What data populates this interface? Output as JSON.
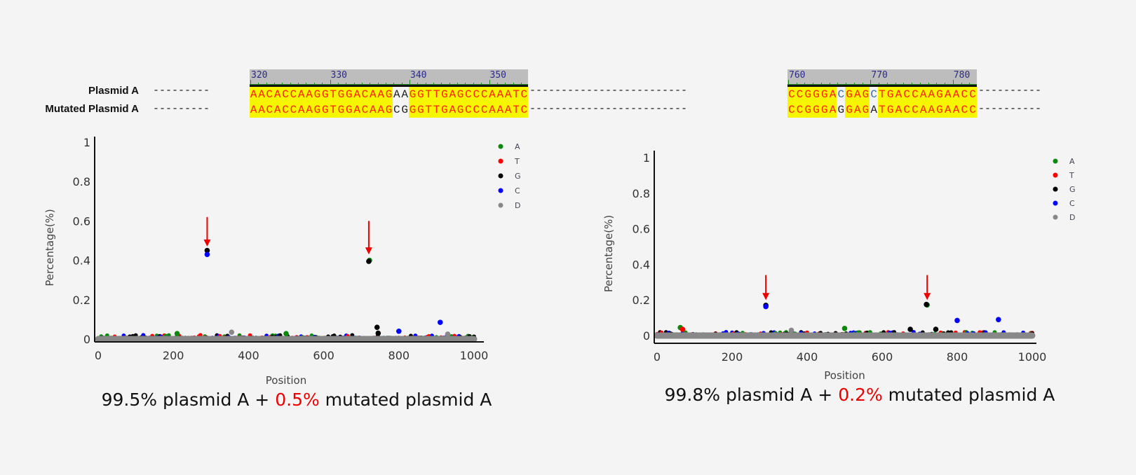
{
  "alignment": {
    "row_labels": [
      "Plasmid A",
      "Mutated Plasmid A"
    ],
    "segments": [
      {
        "start": 320,
        "ruler_labels": [
          "320",
          "330",
          "340",
          "350"
        ],
        "reference": "AACACCAAGGTGGACAAGAAGGTTGAGCCCAAATC",
        "mutated": "AACACCAAGGTGGACAAGCGGGTTGAGCCCAAATC",
        "mismatch_positions": [
          338,
          339
        ]
      },
      {
        "start": 760,
        "ruler_labels": [
          "760",
          "770",
          "780"
        ],
        "reference": "CCGGGACGAGCTGACCAAGAACC",
        "mutated": "CCGGGAGGAGATGACCAAGAACC",
        "mismatch_positions": [
          766,
          770
        ]
      }
    ],
    "colors": {
      "match_bg": "#f6f600",
      "match_text": "#ff2000",
      "mismatch_text": "#222222"
    }
  },
  "chart_data": [
    {
      "type": "scatter",
      "xlabel": "Position",
      "ylabel": "Percentage(%)",
      "xlim": [
        0,
        1000
      ],
      "ylim": [
        0,
        1
      ],
      "xticks": [
        "0",
        "200",
        "400",
        "600",
        "800",
        "1000"
      ],
      "yticks": [
        "0",
        "0.2",
        "0.4",
        "0.6",
        "0.8",
        "1"
      ],
      "grid": false,
      "legend_position": "top-right",
      "legend": [
        {
          "name": "A",
          "color": "#0a8a0a"
        },
        {
          "name": "T",
          "color": "#ff0000"
        },
        {
          "name": "G",
          "color": "#000000"
        },
        {
          "name": "C",
          "color": "#0000ff"
        },
        {
          "name": "D",
          "color": "#888888"
        }
      ],
      "background_level_max": 0.02,
      "points": [
        {
          "x": 290,
          "y": 0.45,
          "base": "G"
        },
        {
          "x": 290,
          "y": 0.43,
          "base": "C"
        },
        {
          "x": 722,
          "y": 0.4,
          "base": "A"
        },
        {
          "x": 720,
          "y": 0.395,
          "base": "G"
        },
        {
          "x": 742,
          "y": 0.06,
          "base": "G"
        },
        {
          "x": 745,
          "y": 0.03,
          "base": "G"
        },
        {
          "x": 800,
          "y": 0.04,
          "base": "C"
        },
        {
          "x": 910,
          "y": 0.085,
          "base": "C"
        },
        {
          "x": 355,
          "y": 0.035,
          "base": "D"
        },
        {
          "x": 930,
          "y": 0.025,
          "base": "D"
        },
        {
          "x": 500,
          "y": 0.028,
          "base": "A"
        },
        {
          "x": 210,
          "y": 0.028,
          "base": "A"
        }
      ],
      "arrows_at": [
        290,
        720
      ],
      "caption": {
        "pre": "99.5% plasmid A + ",
        "highlight": "0.5%",
        "post": " mutated plasmid A"
      }
    },
    {
      "type": "scatter",
      "xlabel": "Position",
      "ylabel": "Percentage(%)",
      "xlim": [
        0,
        1000
      ],
      "ylim": [
        0,
        1
      ],
      "xticks": [
        "0",
        "200",
        "400",
        "600",
        "800",
        "1000"
      ],
      "yticks": [
        "0",
        "0.2",
        "0.4",
        "0.6",
        "0.8",
        "1"
      ],
      "grid": false,
      "legend_position": "top-right",
      "legend": [
        {
          "name": "A",
          "color": "#0a8a0a"
        },
        {
          "name": "T",
          "color": "#ff0000"
        },
        {
          "name": "G",
          "color": "#000000"
        },
        {
          "name": "C",
          "color": "#0000ff"
        },
        {
          "name": "D",
          "color": "#888888"
        }
      ],
      "background_level_max": 0.02,
      "points": [
        {
          "x": 290,
          "y": 0.17,
          "base": "G"
        },
        {
          "x": 290,
          "y": 0.163,
          "base": "C"
        },
        {
          "x": 720,
          "y": 0.172,
          "base": "A"
        },
        {
          "x": 718,
          "y": 0.175,
          "base": "G"
        },
        {
          "x": 800,
          "y": 0.085,
          "base": "C"
        },
        {
          "x": 910,
          "y": 0.09,
          "base": "C"
        },
        {
          "x": 743,
          "y": 0.035,
          "base": "G"
        },
        {
          "x": 675,
          "y": 0.035,
          "base": "G"
        },
        {
          "x": 500,
          "y": 0.04,
          "base": "A"
        },
        {
          "x": 62,
          "y": 0.045,
          "base": "A"
        },
        {
          "x": 68,
          "y": 0.035,
          "base": "T"
        },
        {
          "x": 358,
          "y": 0.03,
          "base": "D"
        }
      ],
      "arrows_at": [
        290,
        720
      ],
      "caption": {
        "pre": "99.8% plasmid A + ",
        "highlight": "0.2%",
        "post": " mutated plasmid A"
      }
    }
  ]
}
